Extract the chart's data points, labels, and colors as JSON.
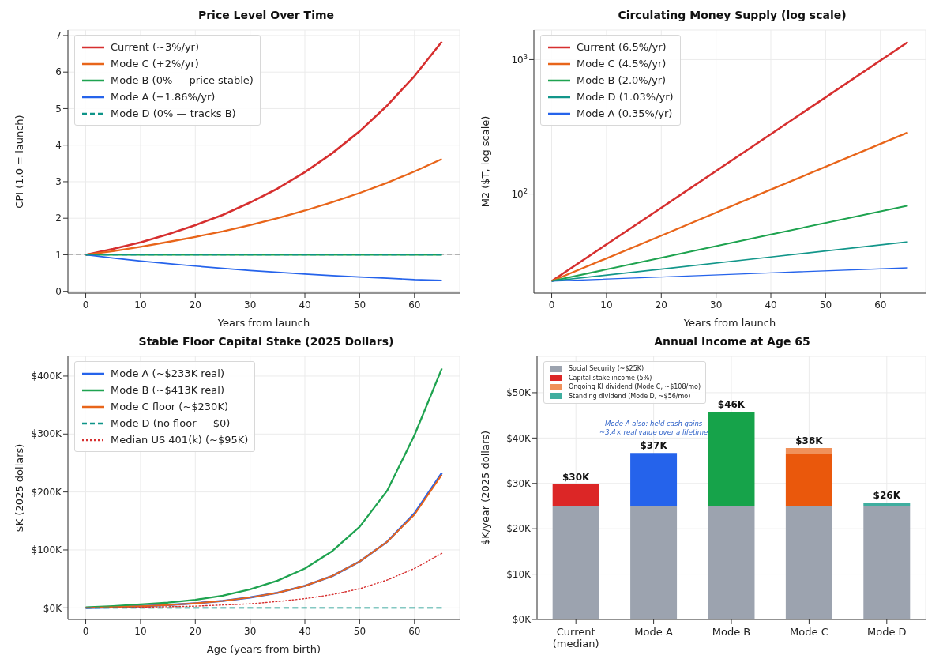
{
  "chart_data": [
    {
      "type": "line",
      "title": "Price Level Over Time",
      "xlabel": "Years from launch",
      "ylabel": "CPI (1.0 = launch)",
      "x": [
        0,
        5,
        10,
        15,
        20,
        25,
        30,
        35,
        40,
        45,
        50,
        55,
        60,
        65
      ],
      "xlim": [
        -3.25,
        68.25
      ],
      "xticks": [
        0,
        10,
        20,
        30,
        40,
        50,
        60
      ],
      "ylim": [
        -0.05,
        7.15
      ],
      "yticks": [
        0,
        1,
        2,
        3,
        4,
        5,
        6,
        7
      ],
      "grid": true,
      "legend": "top left",
      "ref_lines": [
        {
          "axis": "y",
          "value": 1,
          "color": "#b0b0b0",
          "line_style": "dashed"
        }
      ],
      "series": [
        {
          "name": "Current (~3%/yr)",
          "color": "#d62f2f",
          "values": [
            1,
            1.16,
            1.34,
            1.56,
            1.81,
            2.09,
            2.43,
            2.81,
            3.26,
            3.78,
            4.38,
            5.08,
            5.89,
            6.83
          ]
        },
        {
          "name": "Mode C (+2%/yr)",
          "color": "#e8651a",
          "values": [
            1,
            1.1,
            1.22,
            1.35,
            1.49,
            1.64,
            1.81,
            2.0,
            2.21,
            2.44,
            2.69,
            2.97,
            3.28,
            3.62
          ]
        },
        {
          "name": "Mode B (0% — price stable)",
          "color": "#1fa350",
          "values": [
            1,
            1,
            1,
            1,
            1,
            1,
            1,
            1,
            1,
            1,
            1,
            1,
            1,
            1
          ]
        },
        {
          "name": "Mode A (−1.86%/yr)",
          "color": "#2563eb",
          "values": [
            1,
            0.91,
            0.83,
            0.76,
            0.69,
            0.63,
            0.57,
            0.52,
            0.47,
            0.43,
            0.39,
            0.36,
            0.32,
            0.3
          ]
        },
        {
          "name": "Mode D (0% — tracks B)",
          "color": "#0d9488",
          "line_style": "dashed",
          "values": [
            1,
            1,
            1,
            1,
            1,
            1,
            1,
            1,
            1,
            1,
            1,
            1,
            1,
            1
          ]
        }
      ]
    },
    {
      "type": "line",
      "title": "Circulating Money Supply (log scale)",
      "xlabel": "Years from launch",
      "ylabel": "M2 ($T, log scale)",
      "log": "y",
      "x": [
        0,
        20,
        40,
        65
      ],
      "xlim": [
        -3.25,
        68.25
      ],
      "xticks": [
        0,
        10,
        20,
        30,
        40,
        50,
        60
      ],
      "ylim": [
        18.3,
        1660
      ],
      "yticks": [
        {
          "value": 100,
          "label": "10$^{2}$"
        },
        {
          "value": 1000,
          "label": "10$^{3}$"
        }
      ],
      "grid": true,
      "legend": "top left",
      "series": [
        {
          "name": "Current (6.5%/yr)",
          "color": "#d62f2f",
          "values": [
            22.5,
            79,
            279,
            1350
          ]
        },
        {
          "name": "Mode C (4.5%/yr)",
          "color": "#e8651a",
          "values": [
            22.5,
            49,
            108,
            287
          ]
        },
        {
          "name": "Mode B (2.0%/yr)",
          "color": "#1fa350",
          "values": [
            22.5,
            33.5,
            50,
            82
          ]
        },
        {
          "name": "Mode D (1.03%/yr)",
          "color": "#12968a",
          "values": [
            22.5,
            27.6,
            34,
            44
          ]
        },
        {
          "name": "Mode A (0.35%/yr)",
          "color": "#2563eb",
          "values": [
            22.5,
            24.1,
            25.9,
            28.2
          ]
        }
      ]
    },
    {
      "type": "line",
      "title": "Stable Floor Capital Stake (2025 Dollars)",
      "xlabel": "Age (years from birth)",
      "ylabel": "$K (2025 dollars)",
      "x": [
        0,
        5,
        10,
        15,
        20,
        25,
        30,
        35,
        40,
        45,
        50,
        55,
        60,
        65
      ],
      "xlim": [
        -3.25,
        68.25
      ],
      "xticks": [
        0,
        10,
        20,
        30,
        40,
        50,
        60
      ],
      "ylim": [
        -20,
        434
      ],
      "yticks": [
        {
          "value": 0,
          "label": "$0K"
        },
        {
          "value": 100,
          "label": "$100K"
        },
        {
          "value": 200,
          "label": "$200K"
        },
        {
          "value": 300,
          "label": "$300K"
        },
        {
          "value": 400,
          "label": "$400K"
        }
      ],
      "grid": true,
      "legend": "top left",
      "series": [
        {
          "name": "Mode A (~$233K real)",
          "color": "#2563eb",
          "values": [
            0,
            1,
            3,
            5,
            8,
            12,
            18,
            26,
            38,
            55,
            80,
            114,
            163,
            233
          ]
        },
        {
          "name": "Mode B (~$413K real)",
          "color": "#1fa350",
          "values": [
            1,
            3,
            6,
            9,
            14,
            21,
            32,
            47,
            68,
            98,
            140,
            202,
            298,
            413
          ]
        },
        {
          "name": "Mode C floor (~$230K)",
          "color": "#e8651a",
          "values": [
            0,
            1,
            3,
            5,
            8,
            12,
            18,
            26,
            38,
            55,
            80,
            114,
            161,
            230
          ]
        },
        {
          "name": "Mode D (no floor — $0)",
          "color": "#0d9488",
          "line_style": "dashed",
          "values": [
            0,
            0,
            0,
            0,
            0,
            0,
            0,
            0,
            0,
            0,
            0,
            0,
            0,
            0
          ]
        },
        {
          "name": "Median US 401(k) (~$95K)",
          "color": "#d62f2f",
          "line_style": "dotted",
          "values": [
            0,
            0,
            1,
            2,
            3,
            5,
            7,
            11,
            16,
            23,
            33,
            48,
            68,
            94
          ]
        }
      ]
    },
    {
      "type": "bar",
      "stacked": true,
      "title": "Annual Income at Age 65",
      "ylabel": "$K/year (2025 dollars)",
      "categories": [
        "Current (median)",
        "Mode A",
        "Mode B",
        "Mode C",
        "Mode D"
      ],
      "ylim": [
        0,
        58
      ],
      "yticks": [
        {
          "value": 0,
          "label": "$0K"
        },
        {
          "value": 10,
          "label": "$10K"
        },
        {
          "value": 20,
          "label": "$20K"
        },
        {
          "value": 30,
          "label": "$30K"
        },
        {
          "value": 40,
          "label": "$40K"
        },
        {
          "value": 50,
          "label": "$50K"
        }
      ],
      "grid": true,
      "legend": "top left",
      "totals": [
        "$30K",
        "$37K",
        "$46K",
        "$38K",
        "$26K"
      ],
      "annotations": [
        "Mode A also: held cash gains\n~3.4× real value over a lifetime"
      ],
      "series": [
        {
          "name": "Social Security (~$25K)",
          "color": "#9ca3af",
          "values": [
            25,
            25,
            25,
            25,
            25
          ]
        },
        {
          "name": "Capital stake income (5%)",
          "color": "#dc2626",
          "colors": [
            "#dc2626",
            "#2563eb",
            "#16a34a",
            "#ea580c",
            "#0d9488"
          ],
          "values": [
            4.8,
            11.7,
            20.8,
            11.5,
            0
          ]
        },
        {
          "name": "Ongoing KI dividend (Mode C, ~$108/mo)",
          "color": "#f0915a",
          "values": [
            0,
            0,
            0,
            1.3,
            0
          ]
        },
        {
          "name": "Standing dividend (Mode D, ~$56/mo)",
          "color": "#3fae9f",
          "values": [
            0,
            0,
            0,
            0,
            0.7
          ]
        }
      ]
    }
  ]
}
